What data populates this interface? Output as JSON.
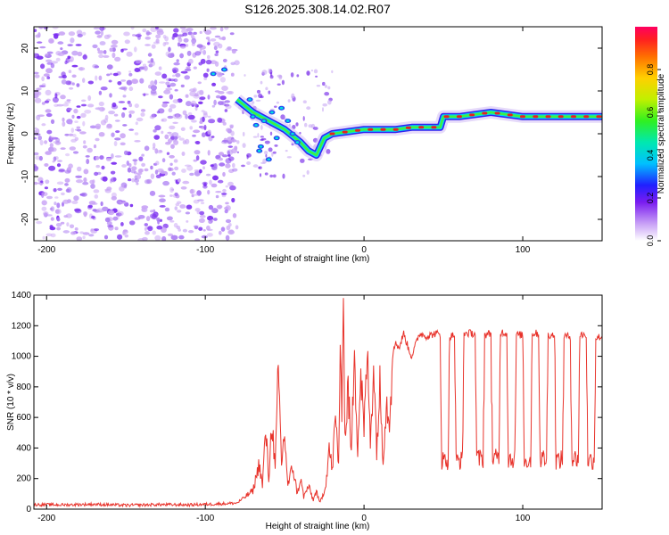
{
  "title": "S126.2025.308.14.02.R07",
  "colors": {
    "snr_line": "#e8332b",
    "axis": "#000000",
    "scatter_purple": "#7a2cf0",
    "scatter_light": "#c9a4f5"
  },
  "chart_data": [
    {
      "type": "heatmap",
      "title": "S126.2025.308.14.02.R07",
      "xlabel": "Height of straight line (km)",
      "ylabel": "Frequency (Hz)",
      "xlim": [
        -208,
        150
      ],
      "ylim": [
        -25,
        25
      ],
      "xticks": [
        -200,
        -100,
        0,
        100
      ],
      "yticks": [
        -20,
        -10,
        0,
        10,
        20
      ],
      "noise_region_x": [
        -208,
        -80
      ],
      "ridge": {
        "x": [
          -80,
          -70,
          -60,
          -50,
          -40,
          -35,
          -30,
          -25,
          -20,
          -10,
          0,
          10,
          20,
          30,
          40,
          48,
          50,
          60,
          70,
          80,
          90,
          100,
          110,
          120,
          130,
          140,
          150
        ],
        "freq": [
          8,
          5,
          3,
          1,
          -2,
          -4,
          -5,
          -1,
          0,
          0.5,
          1,
          1,
          1,
          1.5,
          1.5,
          1.5,
          4,
          4,
          4.5,
          5,
          4.5,
          4,
          4,
          4,
          4,
          4,
          4
        ]
      },
      "colorbar": {
        "label": "Normalized spectral amplitude",
        "range": [
          0,
          1
        ],
        "ticks": [
          0.0,
          0.2,
          0.4,
          0.6,
          0.8
        ],
        "tick_labels": [
          "0.0",
          "0.2",
          "0.4",
          "0.6",
          "0.8"
        ]
      }
    },
    {
      "type": "line",
      "xlabel": "Height of straight line (km)",
      "ylabel": "SNR (10 * v/v)",
      "xlim": [
        -208,
        150
      ],
      "ylim": [
        0,
        1400
      ],
      "xticks": [
        -200,
        -100,
        0,
        100
      ],
      "yticks": [
        0,
        200,
        400,
        600,
        800,
        1000,
        1200,
        1400
      ],
      "series": [
        {
          "name": "SNR",
          "x": [
            -208,
            -190,
            -170,
            -150,
            -130,
            -110,
            -90,
            -80,
            -70,
            -66,
            -64,
            -62,
            -60,
            -58,
            -56,
            -54,
            -52,
            -50,
            -48,
            -45,
            -42,
            -40,
            -38,
            -35,
            -32,
            -30,
            -28,
            -26,
            -24,
            -22,
            -20,
            -18,
            -16,
            -15,
            -14,
            -13,
            -12,
            -10,
            -8,
            -6,
            -4,
            -2,
            0,
            2,
            4,
            6,
            8,
            10,
            12,
            14,
            16,
            18,
            20,
            22,
            25,
            28,
            30,
            35,
            40,
            45,
            48,
            49,
            53,
            54,
            57,
            58,
            62,
            63,
            70,
            71,
            75,
            76,
            80,
            81,
            85,
            86,
            90,
            91,
            95,
            96,
            100,
            101,
            105,
            106,
            110,
            111,
            115,
            116,
            120,
            121,
            125,
            126,
            130,
            131,
            135,
            136,
            140,
            141,
            145,
            146,
            150
          ],
          "values": [
            30,
            28,
            32,
            25,
            30,
            28,
            35,
            40,
            120,
            300,
            150,
            520,
            200,
            600,
            250,
            920,
            300,
            500,
            150,
            280,
            100,
            200,
            80,
            150,
            60,
            120,
            40,
            90,
            170,
            400,
            250,
            600,
            300,
            1050,
            700,
            1400,
            450,
            800,
            350,
            1050,
            400,
            900,
            500,
            1000,
            450,
            950,
            400,
            800,
            350,
            700,
            600,
            1000,
            1100,
            1050,
            1150,
            1050,
            1000,
            1150,
            1130,
            1150,
            1140,
            320,
            320,
            1130,
            1140,
            320,
            320,
            1150,
            1150,
            330,
            330,
            1140,
            1150,
            330,
            330,
            1160,
            1150,
            330,
            330,
            1140,
            1140,
            320,
            320,
            1150,
            1150,
            330,
            330,
            1140,
            1140,
            320,
            320,
            1130,
            1130,
            330,
            330,
            1140,
            1140,
            320,
            320,
            1120,
            1130
          ]
        }
      ]
    }
  ]
}
